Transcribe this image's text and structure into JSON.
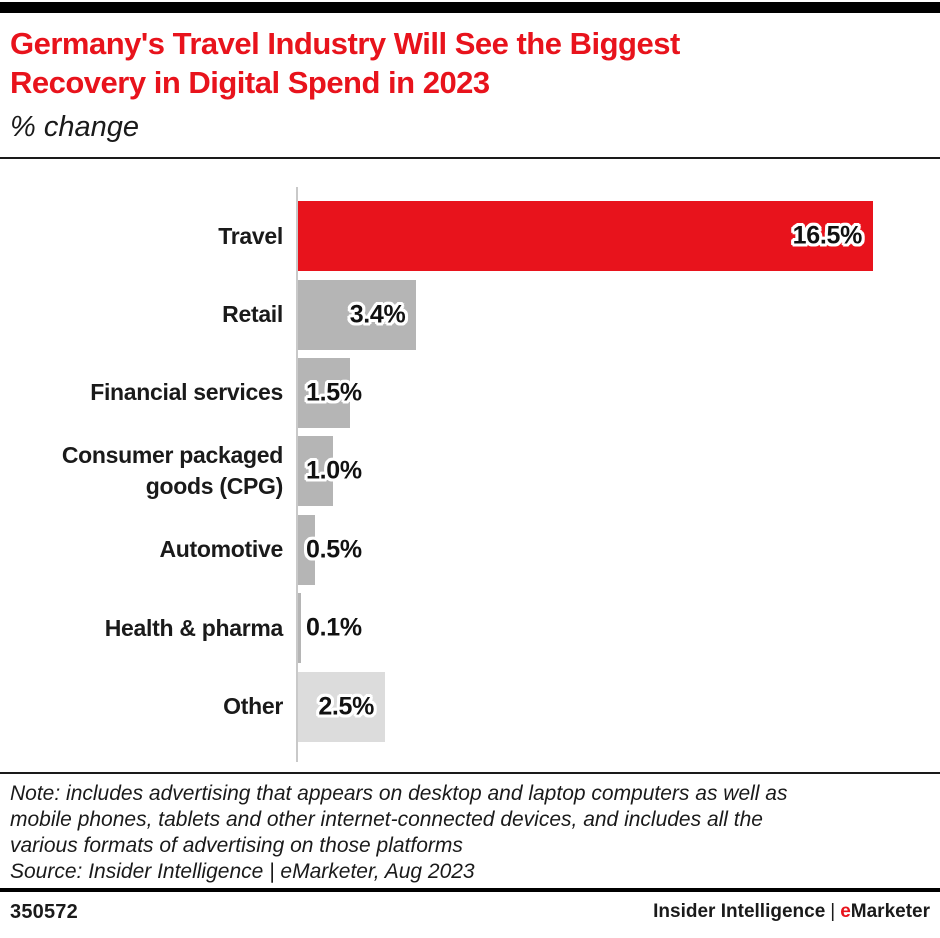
{
  "header": {
    "title": "Germany's Travel Industry Will See the Biggest\nRecovery in Digital Spend in 2023",
    "subtitle": "% change"
  },
  "colors": {
    "red": "#e8131c",
    "gray": "#b5b5b5",
    "light_gray": "#dcdcdc",
    "axis": "#c9c9c9",
    "title_red": "#e8131c",
    "brand_e_red": "#e8131c"
  },
  "chart_data": {
    "type": "bar",
    "orientation": "horizontal",
    "title": "Germany's Travel Industry Will See the Biggest Recovery in Digital Spend in 2023",
    "subtitle": "% change",
    "xlabel": "",
    "ylabel": "",
    "xlim": [
      0,
      16.5
    ],
    "value_unit": "%",
    "grid": false,
    "legend": false,
    "bars": [
      {
        "category": "Travel",
        "value": 16.5,
        "display": "16.5%",
        "color": "red",
        "label_inside": true
      },
      {
        "category": "Retail",
        "value": 3.4,
        "display": "3.4%",
        "color": "gray",
        "label_inside": true
      },
      {
        "category": "Financial services",
        "value": 1.5,
        "display": "1.5%",
        "color": "gray",
        "label_inside": false
      },
      {
        "category": "Consumer packaged\ngoods (CPG)",
        "value": 1.0,
        "display": "1.0%",
        "color": "gray",
        "label_inside": false
      },
      {
        "category": "Automotive",
        "value": 0.5,
        "display": "0.5%",
        "color": "gray",
        "label_inside": false
      },
      {
        "category": "Health & pharma",
        "value": 0.1,
        "display": "0.1%",
        "color": "gray",
        "label_inside": false
      },
      {
        "category": "Other",
        "value": 2.5,
        "display": "2.5%",
        "color": "light_gray",
        "label_inside": true
      }
    ]
  },
  "note": {
    "text": "Note: includes advertising that appears on desktop and laptop computers as well as\nmobile phones, tablets and other internet-connected devices, and includes all the\nvarious formats of advertising on those platforms",
    "source": "Source: Insider Intelligence | eMarketer, Aug 2023"
  },
  "footer": {
    "chart_id": "350572",
    "brand_left": "Insider Intelligence",
    "brand_sep": "|",
    "brand_e": "e",
    "brand_rest": "Marketer"
  }
}
